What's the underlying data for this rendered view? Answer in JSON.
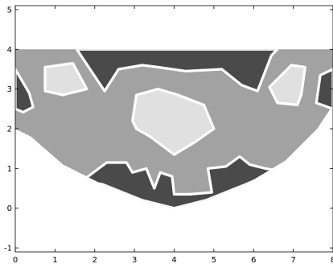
{
  "chart_data": {
    "type": "heatmap",
    "title": "",
    "xlabel": "",
    "ylabel": "",
    "xlim": [
      0,
      8
    ],
    "ylim": [
      -1.1,
      5.1
    ],
    "x_ticks": [
      "0",
      "1",
      "2",
      "3",
      "4",
      "5",
      "6",
      "7",
      "8"
    ],
    "y_ticks": [
      "-1",
      "0",
      "1",
      "2",
      "3",
      "4",
      "5"
    ],
    "grid": false,
    "legend": "none",
    "colors": {
      "dark": "#4a4a4a",
      "medium": "#a2a2a2",
      "light": "#e0e0e0",
      "contour": "#ffffff",
      "axis": "#000000",
      "background": "#ffffff"
    },
    "domain_boundary": [
      [
        0,
        4
      ],
      [
        8,
        4
      ],
      [
        8,
        2.6
      ],
      [
        7.6,
        2.0
      ],
      [
        6.8,
        1.2
      ],
      [
        5.8,
        0.6
      ],
      [
        4.8,
        0.2
      ],
      [
        4.0,
        0.0
      ],
      [
        3.2,
        0.2
      ],
      [
        2.2,
        0.6
      ],
      [
        1.2,
        1.1
      ],
      [
        0.4,
        1.8
      ],
      [
        0,
        2.0
      ]
    ],
    "regions": [
      {
        "level": "dark",
        "points": [
          [
            1.55,
            4.0
          ],
          [
            2.25,
            2.95
          ],
          [
            2.6,
            3.5
          ],
          [
            3.2,
            3.6
          ],
          [
            3.6,
            3.55
          ],
          [
            4.3,
            3.45
          ],
          [
            5.2,
            3.5
          ],
          [
            5.7,
            3.1
          ],
          [
            6.1,
            2.95
          ],
          [
            6.45,
            3.85
          ],
          [
            6.6,
            4.0
          ]
        ]
      },
      {
        "level": "dark",
        "points": [
          [
            0,
            3.5
          ],
          [
            0.35,
            2.9
          ],
          [
            0.45,
            2.55
          ],
          [
            0.2,
            2.42
          ],
          [
            0,
            2.5
          ]
        ]
      },
      {
        "level": "dark",
        "points": [
          [
            8,
            3.5
          ],
          [
            7.68,
            3.35
          ],
          [
            7.58,
            2.65
          ],
          [
            8,
            2.5
          ]
        ]
      },
      {
        "level": "dark",
        "points": [
          [
            1.7,
            0.7
          ],
          [
            2.3,
            1.15
          ],
          [
            2.8,
            1.15
          ],
          [
            2.95,
            0.9
          ],
          [
            3.3,
            1.0
          ],
          [
            3.5,
            0.5
          ],
          [
            3.65,
            0.9
          ],
          [
            3.95,
            0.8
          ],
          [
            4.0,
            0.35
          ],
          [
            4.4,
            0.35
          ],
          [
            4.95,
            0.4
          ],
          [
            4.85,
            1.0
          ],
          [
            5.3,
            1.05
          ],
          [
            5.65,
            1.3
          ],
          [
            5.9,
            1.1
          ],
          [
            6.3,
            1.0
          ],
          [
            6.6,
            0.95
          ],
          [
            5.8,
            0.6
          ],
          [
            4.8,
            0.2
          ],
          [
            4.0,
            0.0
          ],
          [
            3.2,
            0.2
          ],
          [
            2.2,
            0.6
          ]
        ]
      },
      {
        "level": "light",
        "points": [
          [
            2.95,
            2.2
          ],
          [
            3.05,
            2.85
          ],
          [
            3.6,
            3.0
          ],
          [
            4.1,
            2.85
          ],
          [
            4.75,
            2.6
          ],
          [
            5.0,
            2.0
          ],
          [
            4.5,
            1.65
          ],
          [
            4.0,
            1.35
          ],
          [
            3.4,
            1.8
          ],
          [
            3.05,
            2.0
          ]
        ]
      },
      {
        "level": "light",
        "points": [
          [
            0.75,
            3.55
          ],
          [
            1.45,
            3.65
          ],
          [
            1.8,
            3.0
          ],
          [
            1.2,
            2.85
          ],
          [
            0.75,
            2.95
          ]
        ]
      },
      {
        "level": "light",
        "points": [
          [
            6.4,
            3.05
          ],
          [
            6.95,
            3.6
          ],
          [
            7.3,
            3.55
          ],
          [
            7.2,
            2.85
          ],
          [
            7.1,
            2.6
          ],
          [
            6.6,
            2.65
          ]
        ]
      }
    ]
  }
}
